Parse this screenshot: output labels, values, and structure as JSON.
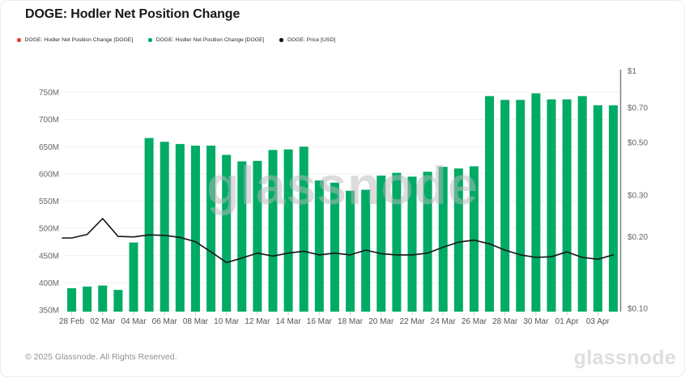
{
  "title": "DOGE: Hodler Net Position Change",
  "legend": [
    {
      "label": "DOGE: Hodler Net Position Change [DOGE]",
      "color": "#e23b3b"
    },
    {
      "label": "DOGE: Hodler Net Position Change [DOGE]",
      "color": "#00ab66"
    },
    {
      "label": "DOGE: Price [USD]",
      "color": "#111111"
    }
  ],
  "watermark": "glassnode",
  "footer": {
    "copyright": "© 2025 Glassnode. All Rights Reserved.",
    "logo": "glassnode"
  },
  "chart_data": {
    "type": "bar+line combo, dual axis",
    "categories": [
      "28 Feb",
      "01 Mar",
      "02 Mar",
      "03 Mar",
      "04 Mar",
      "05 Mar",
      "06 Mar",
      "07 Mar",
      "08 Mar",
      "09 Mar",
      "10 Mar",
      "11 Mar",
      "12 Mar",
      "13 Mar",
      "14 Mar",
      "15 Mar",
      "16 Mar",
      "17 Mar",
      "18 Mar",
      "19 Mar",
      "20 Mar",
      "21 Mar",
      "22 Mar",
      "23 Mar",
      "24 Mar",
      "25 Mar",
      "26 Mar",
      "27 Mar",
      "28 Mar",
      "29 Mar",
      "30 Mar",
      "31 Mar",
      "01 Apr",
      "02 Apr",
      "03 Apr",
      "04 Apr"
    ],
    "x_tick_labels": [
      "28 Feb",
      "02 Mar",
      "04 Mar",
      "06 Mar",
      "08 Mar",
      "10 Mar",
      "12 Mar",
      "14 Mar",
      "16 Mar",
      "18 Mar",
      "20 Mar",
      "22 Mar",
      "24 Mar",
      "26 Mar",
      "28 Mar",
      "30 Mar",
      "01 Apr",
      "03 Apr"
    ],
    "series": [
      {
        "name": "DOGE: Hodler Net Position Change [DOGE]",
        "type": "bar",
        "axis": "left",
        "color": "#00ab66",
        "unit": "DOGE, millions",
        "values": [
          390,
          393,
          395,
          387,
          474,
          666,
          659,
          655,
          652,
          652,
          635,
          623,
          624,
          644,
          645,
          650,
          588,
          584,
          569,
          571,
          597,
          602,
          595,
          604,
          613,
          610,
          614,
          743,
          736,
          736,
          748,
          737,
          737,
          743,
          726,
          726
        ]
      },
      {
        "name": "DOGE: Price [USD]",
        "type": "line",
        "axis": "right",
        "color": "#141414",
        "unit": "USD",
        "values": [
          0.198,
          0.205,
          0.239,
          0.201,
          0.2,
          0.204,
          0.203,
          0.199,
          0.191,
          0.173,
          0.156,
          0.163,
          0.171,
          0.166,
          0.171,
          0.174,
          0.168,
          0.171,
          0.168,
          0.176,
          0.17,
          0.168,
          0.168,
          0.171,
          0.181,
          0.19,
          0.194,
          0.187,
          0.176,
          0.168,
          0.164,
          0.165,
          0.173,
          0.164,
          0.161,
          0.168
        ]
      }
    ],
    "left_axis": {
      "ticks": [
        {
          "label": "350M",
          "value": 350
        },
        {
          "label": "400M",
          "value": 400
        },
        {
          "label": "450M",
          "value": 450
        },
        {
          "label": "500M",
          "value": 500
        },
        {
          "label": "550M",
          "value": 550
        },
        {
          "label": "600M",
          "value": 600
        },
        {
          "label": "650M",
          "value": 650
        },
        {
          "label": "700M",
          "value": 700
        },
        {
          "label": "750M",
          "value": 750
        }
      ],
      "range": [
        350,
        792
      ],
      "scale": "linear"
    },
    "right_axis": {
      "ticks": [
        {
          "label": "$1",
          "value": 1
        },
        {
          "label": "$0.70",
          "value": 0.7
        },
        {
          "label": "$0.50",
          "value": 0.5
        },
        {
          "label": "$0.30",
          "value": 0.3
        },
        {
          "label": "$0.20",
          "value": 0.2
        },
        {
          "label": "$0.10",
          "value": 0.1
        }
      ],
      "range": [
        0.097,
        1.013
      ],
      "scale": "log"
    },
    "grid": "horizontal, light gray, follows left axis ticks",
    "legend_position": "top-left",
    "colors": {
      "grid": "#f0f0f0",
      "axis_line": "#808080",
      "tick": "#cccccc",
      "axis_text": "#666666",
      "x_text": "#555555"
    }
  }
}
